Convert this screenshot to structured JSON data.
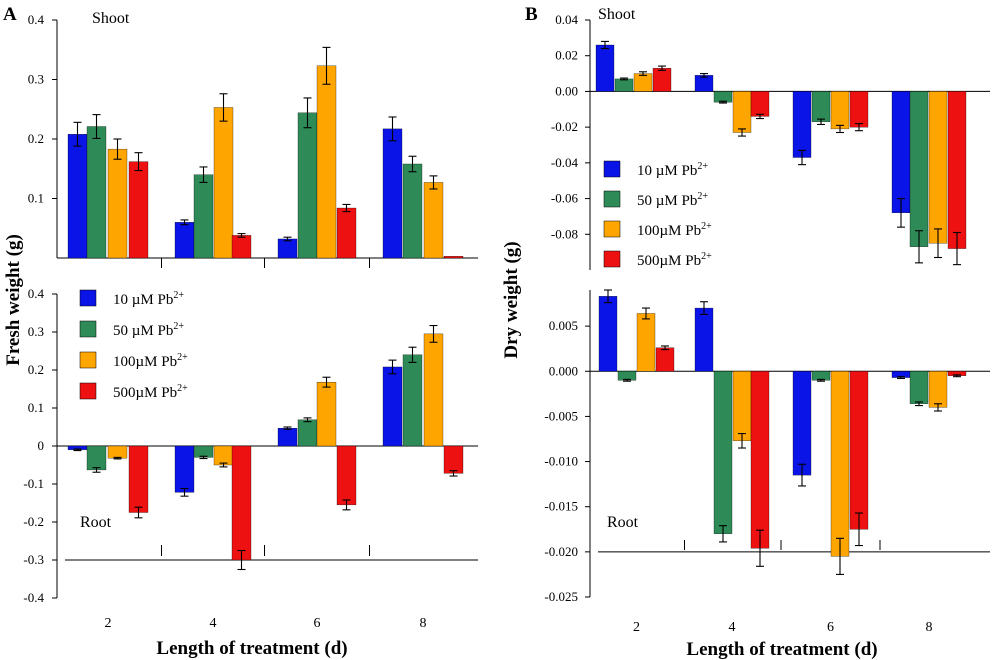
{
  "colors": {
    "10uM": "#0a14e6",
    "50uM": "#2e8b57",
    "100uM": "#ffa500",
    "500uM": "#ee1111",
    "axis": "#000000"
  },
  "panelA": {
    "label": "A",
    "ylabel": "Fresh weight (g)",
    "xlabel": "Length of treatment (d)"
  },
  "panelB": {
    "label": "B",
    "ylabel": "Dry weight (g)",
    "xlabel": "Length of treatment (d)"
  },
  "legend": {
    "items": [
      {
        "prefix": "10 µM Pb",
        "sup": "2+",
        "color_key": "10uM"
      },
      {
        "prefix": "50 µM Pb",
        "sup": "2+",
        "color_key": "50uM"
      },
      {
        "prefix": "100µM Pb",
        "sup": "2+",
        "color_key": "100uM"
      },
      {
        "prefix": "500µM Pb",
        "sup": "2+",
        "color_key": "500uM"
      }
    ]
  },
  "chart_data": [
    {
      "id": "A-shoot",
      "type": "bar",
      "title": "Shoot",
      "panel": "A",
      "categories": [
        "2",
        "4",
        "6",
        "8"
      ],
      "ylim": [
        0,
        0.4
      ],
      "yticks": [
        0.1,
        0.2,
        0.3,
        0.4
      ],
      "ytick_labels": [
        "0.1",
        "0.2",
        "0.3",
        "0.4"
      ],
      "series": [
        {
          "name": "10 µM Pb2+",
          "values": [
            0.208,
            0.06,
            0.032,
            0.217
          ],
          "errors": [
            0.02,
            0.004,
            0.003,
            0.02
          ]
        },
        {
          "name": "50 µM Pb2+",
          "values": [
            0.221,
            0.14,
            0.244,
            0.158
          ],
          "errors": [
            0.02,
            0.013,
            0.025,
            0.013
          ]
        },
        {
          "name": "100µM Pb2+",
          "values": [
            0.183,
            0.253,
            0.323,
            0.127
          ],
          "errors": [
            0.017,
            0.023,
            0.031,
            0.011
          ]
        },
        {
          "name": "500µM Pb2+",
          "values": [
            0.162,
            0.038,
            0.084,
            0.003
          ],
          "errors": [
            0.015,
            0.003,
            0.006,
            0.0
          ]
        }
      ]
    },
    {
      "id": "A-root",
      "type": "bar",
      "title": "Root",
      "panel": "A",
      "categories": [
        "2",
        "4",
        "6",
        "8"
      ],
      "ylim": [
        -0.4,
        0.4
      ],
      "yticks": [
        -0.4,
        -0.3,
        -0.2,
        -0.1,
        0,
        0.1,
        0.2,
        0.3,
        0.4
      ],
      "ytick_labels": [
        "-0.4",
        "-0.3",
        "-0.2",
        "-0.1",
        "0",
        "0.1",
        "0.2",
        "0.3",
        "0.4"
      ],
      "baseline_level": -0.3,
      "series": [
        {
          "name": "10 µM Pb2+",
          "values": [
            -0.01,
            -0.122,
            0.047,
            0.208
          ],
          "errors": [
            0.002,
            0.01,
            0.003,
            0.018
          ]
        },
        {
          "name": "50 µM Pb2+",
          "values": [
            -0.063,
            -0.03,
            0.069,
            0.24
          ],
          "errors": [
            0.006,
            0.003,
            0.005,
            0.02
          ]
        },
        {
          "name": "100µM Pb2+",
          "values": [
            -0.032,
            -0.05,
            0.168,
            0.295
          ],
          "errors": [
            0.002,
            0.005,
            0.013,
            0.022
          ]
        },
        {
          "name": "500µM Pb2+",
          "values": [
            -0.175,
            -0.3,
            -0.155,
            -0.072
          ],
          "errors": [
            0.014,
            0.025,
            0.013,
            0.007
          ]
        }
      ]
    },
    {
      "id": "B-shoot",
      "type": "bar",
      "title": "Shoot",
      "panel": "B",
      "categories": [
        "2",
        "4",
        "6",
        "8"
      ],
      "ylim": [
        -0.1,
        0.04
      ],
      "yticks": [
        -0.08,
        -0.06,
        -0.04,
        -0.02,
        0,
        0.02,
        0.04
      ],
      "ytick_labels": [
        "-0.08",
        "-0.06",
        "-0.04",
        "-0.02",
        "0.00",
        "0.02",
        "0.04"
      ],
      "series": [
        {
          "name": "10 µM Pb2+",
          "values": [
            0.026,
            0.009,
            -0.037,
            -0.068
          ],
          "errors": [
            0.002,
            0.001,
            0.004,
            0.008
          ]
        },
        {
          "name": "50 µM Pb2+",
          "values": [
            0.007,
            -0.006,
            -0.017,
            -0.087
          ],
          "errors": [
            0.0005,
            0.0005,
            0.0015,
            0.009
          ]
        },
        {
          "name": "100µM Pb2+",
          "values": [
            0.01,
            -0.023,
            -0.021,
            -0.085
          ],
          "errors": [
            0.001,
            0.002,
            0.002,
            0.008
          ]
        },
        {
          "name": "500µM Pb2+",
          "values": [
            0.013,
            -0.014,
            -0.02,
            -0.088
          ],
          "errors": [
            0.0012,
            0.0012,
            0.002,
            0.009
          ]
        }
      ]
    },
    {
      "id": "B-root",
      "type": "bar",
      "title": "Root",
      "panel": "B",
      "categories": [
        "2",
        "4",
        "6",
        "8"
      ],
      "ylim": [
        -0.025,
        0.009
      ],
      "yticks": [
        -0.025,
        -0.02,
        -0.015,
        -0.01,
        -0.005,
        0,
        0.005
      ],
      "ytick_labels": [
        "-0.025",
        "-0.020",
        "-0.015",
        "-0.010",
        "-0.005",
        "0.000",
        "0.005"
      ],
      "baseline_level": -0.02,
      "series": [
        {
          "name": "10 µM Pb2+",
          "values": [
            0.0083,
            0.007,
            -0.0115,
            -0.0007
          ],
          "errors": [
            0.0007,
            0.0007,
            0.0012,
            0.0001
          ]
        },
        {
          "name": "50 µM Pb2+",
          "values": [
            -0.001,
            -0.018,
            -0.001,
            -0.0036
          ],
          "errors": [
            0.0001,
            0.0009,
            0.0001,
            0.0002
          ]
        },
        {
          "name": "100µM Pb2+",
          "values": [
            0.0064,
            -0.0077,
            -0.0205,
            -0.004
          ],
          "errors": [
            0.0006,
            0.0008,
            0.002,
            0.0004
          ]
        },
        {
          "name": "500µM Pb2+",
          "values": [
            0.0026,
            -0.0196,
            -0.0175,
            -0.0005
          ],
          "errors": [
            0.0002,
            0.002,
            0.0018,
            0.0001
          ]
        }
      ]
    }
  ]
}
